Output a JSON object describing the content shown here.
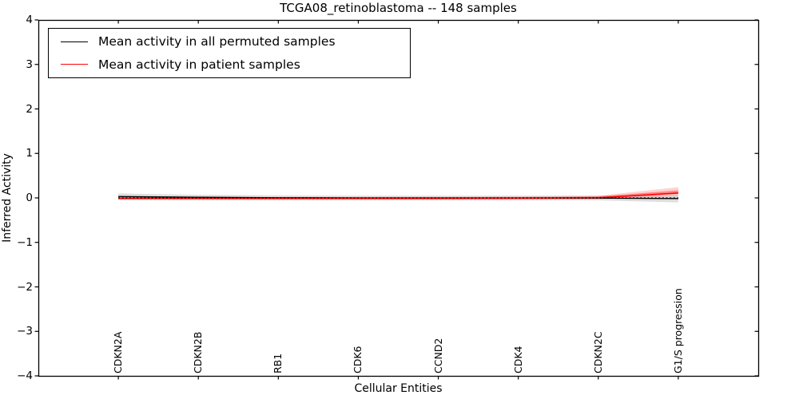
{
  "figure": {
    "background": "#ffffff"
  },
  "legend": {
    "position": "upper left",
    "items": [
      {
        "label": "Mean activity in all permuted samples",
        "color": "#000000"
      },
      {
        "label": "Mean activity in patient samples",
        "color": "#ff0000"
      }
    ]
  },
  "chart_data": {
    "type": "line",
    "title": "TCGA08_retinoblastoma -- 148 samples",
    "xlabel": "Cellular Entities",
    "ylabel": "Inferred Activity",
    "ylim": [
      -4,
      4
    ],
    "yticks": [
      4,
      3,
      2,
      1,
      0,
      -1,
      -2,
      -3,
      -4
    ],
    "ytick_labels": [
      "4",
      "3",
      "2",
      "1",
      "0",
      "−1",
      "−2",
      "−3",
      "−4"
    ],
    "categories": [
      "CDKN2A",
      "CDKN2B",
      "RB1",
      "CDK6",
      "CCND2",
      "CDK4",
      "CDKN2C",
      "G1/S progression"
    ],
    "xtick_rotation": 90,
    "grid": false,
    "legend_position": "upper left",
    "zero_line": {
      "y": 0,
      "color": "#000000",
      "style": "dotted"
    },
    "series": [
      {
        "name": "Mean activity in all permuted samples",
        "color": "#000000",
        "values": [
          0.03,
          0.015,
          0.005,
          0.0,
          0.0,
          0.0,
          -0.005,
          -0.015
        ],
        "band_upper": [
          0.1,
          0.07,
          0.055,
          0.05,
          0.05,
          0.05,
          0.05,
          0.06
        ],
        "band_lower": [
          -0.04,
          -0.05,
          -0.05,
          -0.05,
          -0.05,
          -0.05,
          -0.055,
          -0.1
        ],
        "band_color": "rgba(0,0,0,0.13)"
      },
      {
        "name": "Mean activity in patient samples",
        "color": "#ff0000",
        "values": [
          -0.008,
          -0.008,
          -0.008,
          -0.008,
          -0.008,
          -0.005,
          0.005,
          0.11
        ],
        "band_upper": [
          0.02,
          0.02,
          0.02,
          0.02,
          0.02,
          0.03,
          0.05,
          0.24
        ],
        "band_lower": [
          -0.05,
          -0.05,
          -0.05,
          -0.05,
          -0.05,
          -0.05,
          -0.03,
          0.04
        ],
        "band_color": "rgba(255,0,0,0.18)",
        "inner_band_upper": [
          0.005,
          0.005,
          0.005,
          0.005,
          0.005,
          0.01,
          0.03,
          0.17
        ],
        "inner_band_lower": [
          -0.03,
          -0.03,
          -0.03,
          -0.03,
          -0.03,
          -0.025,
          -0.015,
          0.09
        ],
        "inner_band_color": "rgba(255,0,0,0.35)"
      }
    ]
  }
}
